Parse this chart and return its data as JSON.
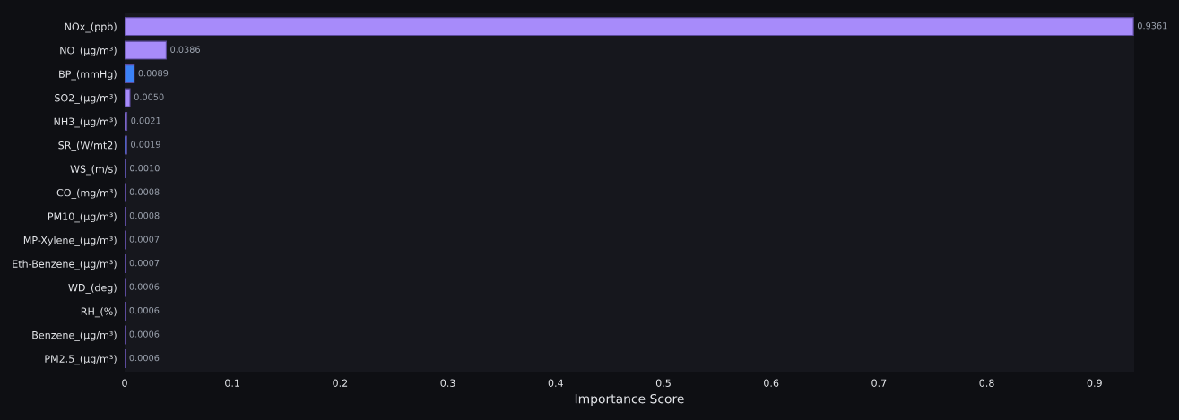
{
  "chart_data": {
    "type": "bar",
    "orientation": "horizontal",
    "xlabel": "Importance Score",
    "categories": [
      "NOx_(ppb)",
      "NO_(µg/m³)",
      "BP_(mmHg)",
      "SO2_(µg/m³)",
      "NH3_(µg/m³)",
      "SR_(W/mt2)",
      "WS_(m/s)",
      "CO_(mg/m³)",
      "PM10_(µg/m³)",
      "MP-Xylene_(µg/m³)",
      "Eth-Benzene_(µg/m³)",
      "WD_(deg)",
      "RH_(%)",
      "Benzene_(µg/m³)",
      "PM2.5_(µg/m³)"
    ],
    "values": [
      0.9361,
      0.0386,
      0.0089,
      0.005,
      0.0021,
      0.0019,
      0.001,
      0.0008,
      0.0008,
      0.0007,
      0.0007,
      0.0006,
      0.0006,
      0.0006,
      0.0006
    ],
    "colors": [
      "#a78bfa",
      "#a78bfa",
      "#3b82f6",
      "#a78bfa",
      "#a78bfa",
      "#3b82f6",
      "#3b82f6",
      "#a78bfa",
      "#a78bfa",
      "#a78bfa",
      "#a78bfa",
      "#3b82f6",
      "#3b82f6",
      "#a78bfa",
      "#a78bfa"
    ],
    "value_labels": [
      "0.9361",
      "0.0386",
      "0.0089",
      "0.0050",
      "0.0021",
      "0.0019",
      "0.0010",
      "0.0008",
      "0.0008",
      "0.0007",
      "0.0007",
      "0.0006",
      "0.0006",
      "0.0006",
      "0.0006"
    ],
    "xlim": [
      0,
      0.9368
    ],
    "xticks": [
      0,
      0.1,
      0.2,
      0.3,
      0.4,
      0.5,
      0.6,
      0.7,
      0.8,
      0.9
    ],
    "grid": false,
    "legend": false
  }
}
